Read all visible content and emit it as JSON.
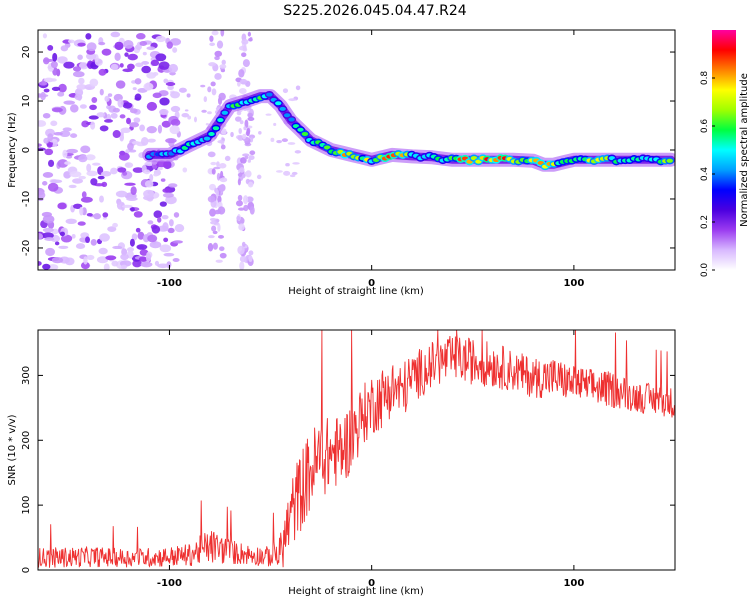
{
  "title": "S225.2026.045.04.47.R24",
  "chart_data": [
    {
      "type": "heatmap",
      "name": "spectrogram",
      "xlabel": "Height of straight line (km)",
      "ylabel": "Frequency (Hz)",
      "xlim": [
        -165,
        150
      ],
      "ylim": [
        -24.5,
        24.5
      ],
      "xticks": [
        -100,
        0,
        100
      ],
      "xtick_labels": [
        "-100",
        "0",
        "100"
      ],
      "yticks": [
        -20,
        -10,
        0,
        10,
        20
      ],
      "ytick_labels": [
        "-20",
        "-10",
        "0",
        "10",
        "20"
      ],
      "colorbar": {
        "label": "Normalized spectral amplitude",
        "range": [
          0.0,
          1.0
        ],
        "ticks": [
          0.0,
          0.2,
          0.4,
          0.6,
          0.8
        ],
        "tick_labels": [
          "0.0",
          "0.2",
          "0.4",
          "0.6",
          "0.8"
        ],
        "colormap": [
          "#ffffff",
          "#d8b8ff",
          "#9b3cf0",
          "#4b00e0",
          "#0000ff",
          "#00a0ff",
          "#00ffff",
          "#00ff40",
          "#a0ff00",
          "#ffff00",
          "#ff8000",
          "#ff0000",
          "#ff00a0"
        ]
      },
      "ridge": {
        "x": [
          -110,
          -100,
          -90,
          -80,
          -70,
          -62,
          -55,
          -50,
          -45,
          -40,
          -35,
          -30,
          -25,
          -20,
          -15,
          -10,
          -5,
          0,
          10,
          20,
          30,
          40,
          50,
          60,
          70,
          80,
          85,
          90,
          95,
          100,
          110,
          120,
          130,
          140,
          148
        ],
        "f": [
          -1,
          -1,
          1,
          3,
          9,
          10,
          11,
          11,
          9,
          6,
          4,
          2,
          1,
          0,
          -0.5,
          -1,
          -1.5,
          -2,
          -1,
          -1.3,
          -1.5,
          -2,
          -2,
          -2,
          -2,
          -2.2,
          -3,
          -3,
          -2.5,
          -2,
          -2,
          -2,
          -2,
          -2,
          -2
        ],
        "amplitude": [
          0.4,
          0.5,
          0.55,
          0.5,
          0.55,
          0.6,
          0.6,
          0.5,
          0.55,
          0.5,
          0.55,
          0.6,
          0.55,
          0.7,
          0.85,
          0.8,
          0.75,
          0.65,
          0.9,
          0.6,
          0.5,
          0.75,
          0.9,
          0.9,
          0.85,
          0.7,
          0.85,
          0.75,
          0.6,
          0.55,
          0.8,
          0.6,
          0.5,
          0.55,
          0.75
        ]
      }
    },
    {
      "type": "line",
      "name": "snr",
      "xlabel": "Height of straight line (km)",
      "ylabel": "SNR (10 * v/v)",
      "xlim": [
        -165,
        150
      ],
      "ylim": [
        0,
        370
      ],
      "xticks": [
        -100,
        0,
        100
      ],
      "xtick_labels": [
        "-100",
        "0",
        "100"
      ],
      "yticks": [
        0,
        100,
        200,
        300
      ],
      "ytick_labels": [
        "0",
        "100",
        "200",
        "300"
      ],
      "series": [
        {
          "name": "SNR",
          "color": "#ee3030",
          "x": [
            -165,
            -140,
            -120,
            -100,
            -90,
            -80,
            -70,
            -60,
            -50,
            -45,
            -40,
            -35,
            -30,
            -25,
            -20,
            -15,
            -10,
            -5,
            0,
            5,
            10,
            15,
            20,
            30,
            40,
            50,
            60,
            70,
            80,
            90,
            100,
            110,
            120,
            130,
            140,
            150
          ],
          "y": [
            20,
            22,
            20,
            22,
            25,
            40,
            30,
            25,
            22,
            30,
            90,
            130,
            160,
            180,
            185,
            190,
            210,
            240,
            260,
            270,
            285,
            280,
            300,
            320,
            330,
            325,
            320,
            310,
            300,
            300,
            290,
            285,
            280,
            270,
            265,
            260
          ],
          "noise_amplitude": [
            20,
            20,
            18,
            20,
            22,
            35,
            25,
            20,
            20,
            40,
            70,
            80,
            80,
            80,
            70,
            70,
            70,
            60,
            60,
            60,
            55,
            55,
            50,
            45,
            45,
            45,
            45,
            40,
            40,
            40,
            35,
            35,
            35,
            30,
            30,
            30
          ]
        }
      ]
    }
  ]
}
